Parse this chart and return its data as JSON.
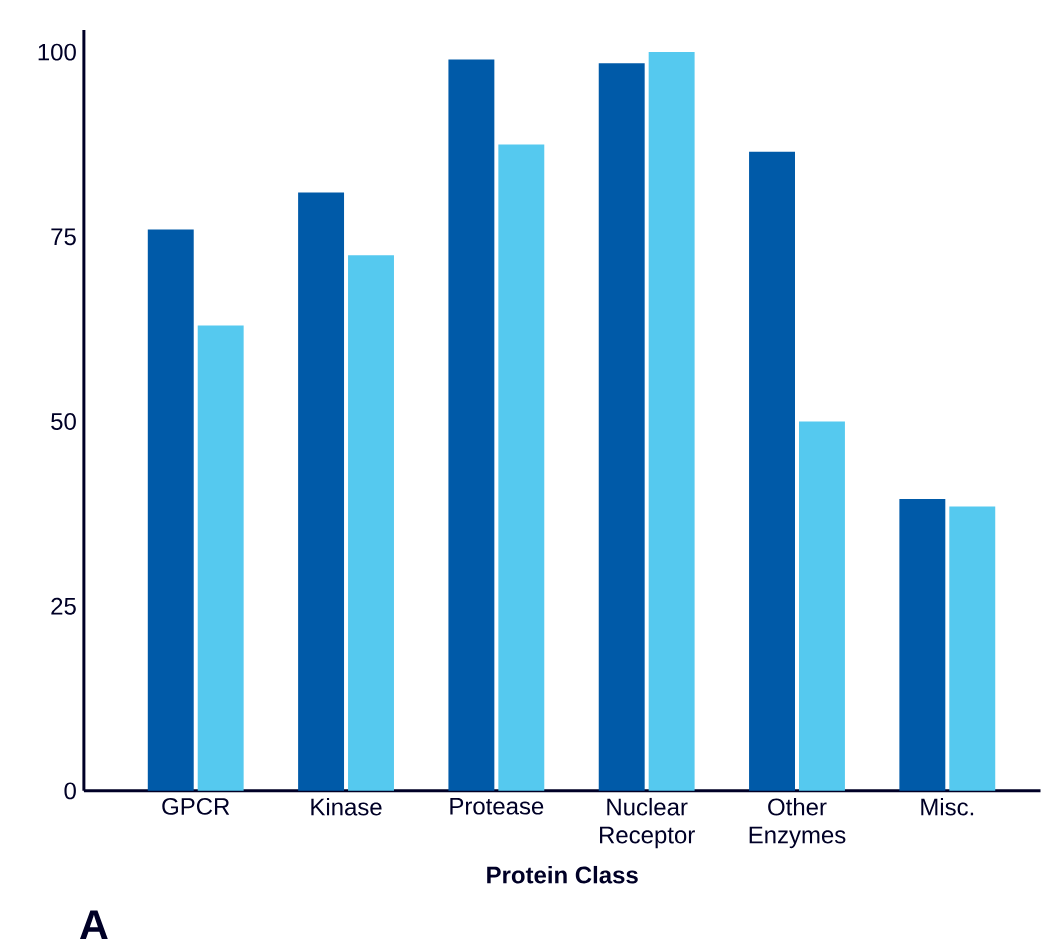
{
  "chart_data": {
    "type": "bar",
    "xlabel": "Protein Class",
    "categories": [
      "GPCR",
      "Kinase",
      "Protease",
      "Nuclear Receptor",
      "Other Enzymes",
      "Misc."
    ],
    "series": [
      {
        "color": "#005aa8",
        "values": [
          76,
          81,
          99,
          98.5,
          86.5,
          39.5
        ]
      },
      {
        "color": "#55c9ef",
        "values": [
          63,
          72.5,
          87.5,
          100,
          50,
          38.5
        ]
      }
    ],
    "ylim": [
      0,
      103
    ],
    "yticks": [
      0,
      25,
      50,
      75,
      100
    ],
    "grid": false,
    "annotations": [
      "A"
    ]
  }
}
